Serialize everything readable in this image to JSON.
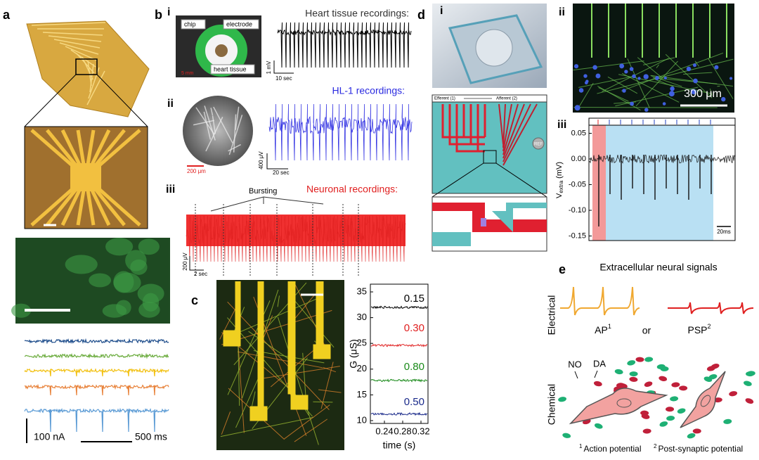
{
  "panel_a": {
    "label": "a",
    "scale_current": "100 nA",
    "scale_time": "500 ms"
  },
  "panel_b": {
    "label": "b",
    "i": {
      "label": "i",
      "chip": "chip",
      "electrode": "electrode",
      "heart_tissue": "heart tissue",
      "scale": "5 mm",
      "title": "Heart tissue recordings:",
      "scale_v": "1 mV",
      "scale_t": "10 sec"
    },
    "ii": {
      "label": "ii",
      "scale": "200 μm",
      "title": "HL-1 recordings:",
      "scale_v": "400 μV",
      "scale_t": "20 sec"
    },
    "iii": {
      "label": "iii",
      "annotation": "Bursting",
      "title": "Neuronal recordings:",
      "scale_v": "200 μV",
      "scale_t": "2 sec"
    }
  },
  "panel_c": {
    "label": "c",
    "y_label": "G (μS)",
    "x_label": "time (s)",
    "yticks": [
      "10",
      "15",
      "20",
      "25",
      "30",
      "35"
    ],
    "xticks": [
      "0.24",
      "0.28",
      "0.32"
    ],
    "trace_labels": [
      "0.15",
      "0.30",
      "0.80",
      "0.50"
    ]
  },
  "panel_d": {
    "label": "d",
    "i": {
      "label": "i",
      "efferent": "Efferent (1)",
      "afferent": "Afferent (2)",
      "ref": "REF"
    },
    "ii": {
      "label": "ii",
      "scale": "300 μm"
    },
    "iii": {
      "label": "iii",
      "y_label_main": "V",
      "y_label_sub": "extra",
      "y_label_unit": "(mV)",
      "yticks": [
        "0.05",
        "0.00",
        "-0.05",
        "-0.10",
        "-0.15"
      ],
      "scale_t": "20ms"
    }
  },
  "panel_e": {
    "label": "e",
    "title": "Extracellular neural signals",
    "electrical": "Electrical",
    "ap": "AP",
    "ap_note": "1",
    "or": "or",
    "psp": "PSP",
    "psp_note": "2",
    "chemical": "Chemical",
    "no": "NO",
    "da": "DA",
    "footnotes": [
      {
        "mark": "1",
        "text": "Action potential"
      },
      {
        "mark": "2",
        "text": "Post-synaptic potential"
      }
    ]
  }
}
